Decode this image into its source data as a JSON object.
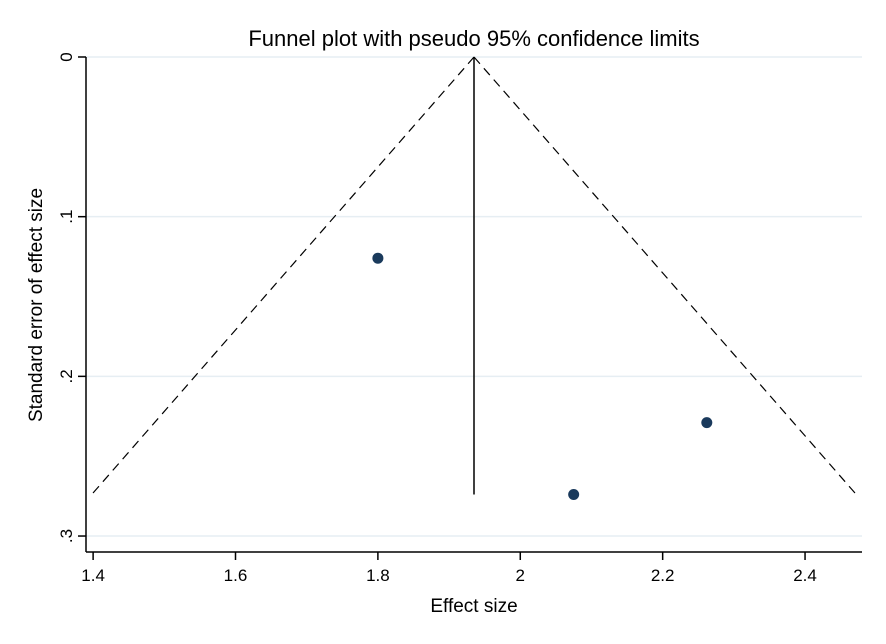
{
  "chart_data": {
    "type": "scatter",
    "title": "Funnel plot with pseudo 95% confidence limits",
    "xlabel": "Effect size",
    "ylabel": "Standard error of effect size",
    "xlim": [
      1.39,
      2.48
    ],
    "ylim": [
      0,
      0.31
    ],
    "y_axis_reversed": true,
    "x_ticks": [
      1.4,
      1.6,
      1.8,
      2,
      2.2,
      2.4
    ],
    "x_tick_labels": [
      "1.4",
      "1.6",
      "1.8",
      "2",
      "2.2",
      "2.4"
    ],
    "y_ticks": [
      0,
      0.1,
      0.2,
      0.3
    ],
    "y_tick_labels": [
      "0",
      ".1",
      ".2",
      ".3"
    ],
    "grid": "horizontal",
    "points": [
      {
        "x": 1.8,
        "y": 0.126
      },
      {
        "x": 2.075,
        "y": 0.274
      },
      {
        "x": 2.262,
        "y": 0.229
      }
    ],
    "pooled_effect": 1.935,
    "se_max": 0.274,
    "confidence_limits": {
      "lower": [
        {
          "x": 1.935,
          "y": 0
        },
        {
          "x": 1.398,
          "y": 0.274
        }
      ],
      "upper": [
        {
          "x": 1.935,
          "y": 0
        },
        {
          "x": 2.472,
          "y": 0.274
        }
      ]
    },
    "colors": {
      "point": "#1a3a5c",
      "grid": "#e6eef3",
      "line": "#000000"
    }
  }
}
